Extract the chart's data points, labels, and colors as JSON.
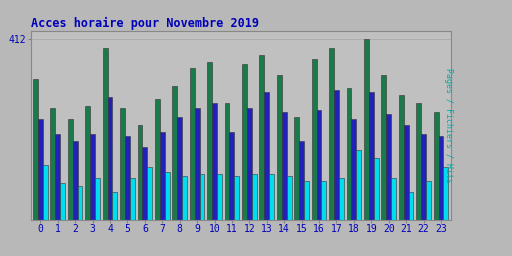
{
  "title": "Acces horaire pour Novembre 2019",
  "ylabel": "Pages / Fichiers / Hits",
  "hours": [
    0,
    1,
    2,
    3,
    4,
    5,
    6,
    7,
    8,
    9,
    10,
    11,
    12,
    13,
    14,
    15,
    16,
    17,
    18,
    19,
    20,
    21,
    22,
    23
  ],
  "hits": [
    320,
    255,
    230,
    260,
    390,
    255,
    215,
    275,
    305,
    345,
    360,
    265,
    355,
    375,
    330,
    235,
    365,
    390,
    300,
    412,
    330,
    285,
    265,
    245
  ],
  "pages": [
    230,
    195,
    180,
    195,
    280,
    190,
    165,
    200,
    235,
    255,
    265,
    200,
    255,
    290,
    245,
    180,
    250,
    295,
    230,
    290,
    240,
    215,
    195,
    190
  ],
  "fichiers": [
    125,
    85,
    78,
    95,
    65,
    95,
    120,
    110,
    100,
    105,
    105,
    100,
    105,
    105,
    100,
    90,
    90,
    95,
    160,
    140,
    95,
    65,
    90,
    120
  ],
  "color_hits": "#1a7a4a",
  "color_pages": "#2222bb",
  "color_fichiers": "#00ddee",
  "bg_color": "#b8b8b8",
  "plot_bg": "#c0c0c0",
  "title_color": "#0000bb",
  "ylabel_color": "#00aaaa",
  "tick_color": "#0000bb",
  "ylim_max": 430,
  "ytick_val": 412,
  "ytick_label": "412"
}
